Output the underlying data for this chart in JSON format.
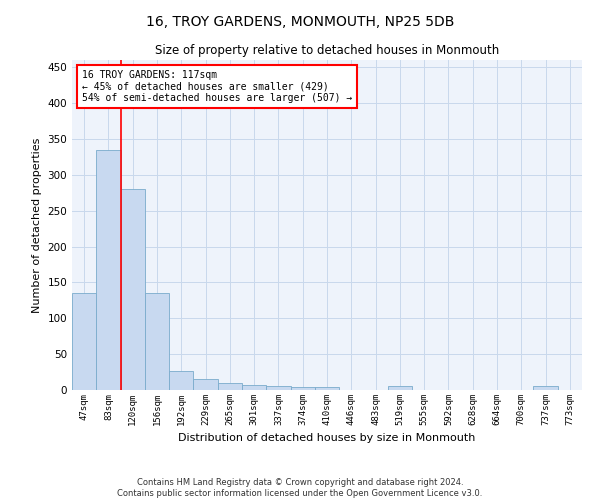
{
  "title": "16, TROY GARDENS, MONMOUTH, NP25 5DB",
  "subtitle": "Size of property relative to detached houses in Monmouth",
  "xlabel": "Distribution of detached houses by size in Monmouth",
  "ylabel": "Number of detached properties",
  "footer_line1": "Contains HM Land Registry data © Crown copyright and database right 2024.",
  "footer_line2": "Contains public sector information licensed under the Open Government Licence v3.0.",
  "bar_labels": [
    "47sqm",
    "83sqm",
    "120sqm",
    "156sqm",
    "192sqm",
    "229sqm",
    "265sqm",
    "301sqm",
    "337sqm",
    "374sqm",
    "410sqm",
    "446sqm",
    "483sqm",
    "519sqm",
    "555sqm",
    "592sqm",
    "628sqm",
    "664sqm",
    "700sqm",
    "737sqm",
    "773sqm"
  ],
  "bar_values": [
    135,
    335,
    280,
    135,
    27,
    15,
    10,
    7,
    5,
    4,
    4,
    0,
    0,
    5,
    0,
    0,
    0,
    0,
    0,
    5,
    0
  ],
  "bar_color": "#c8d9f0",
  "bar_edge_color": "#7aabcc",
  "grid_color": "#c8d8ec",
  "bg_color": "#eef3fb",
  "annotation_text": "16 TROY GARDENS: 117sqm\n← 45% of detached houses are smaller (429)\n54% of semi-detached houses are larger (507) →",
  "ylim": [
    0,
    460
  ],
  "yticks": [
    0,
    50,
    100,
    150,
    200,
    250,
    300,
    350,
    400,
    450
  ],
  "red_line_x": 1.5
}
